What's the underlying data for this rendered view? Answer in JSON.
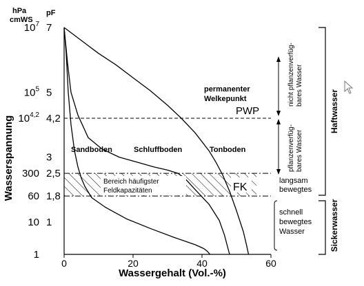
{
  "chart_data": {
    "type": "line",
    "xlabel": "Wassergehalt (Vol.-%)",
    "ylabel": "Wasserspannung",
    "xlim": [
      0,
      60
    ],
    "ylim": [
      0,
      7
    ],
    "y_unit_hpa": [
      "hPa",
      "cmWS"
    ],
    "y_unit_pf": "pF",
    "x_ticks": [
      0,
      20,
      40,
      60
    ],
    "pf_ticks": [
      {
        "pf": 7,
        "label": "7"
      },
      {
        "pf": 5,
        "label": "5"
      },
      {
        "pf": 4.2,
        "label": "4,2"
      },
      {
        "pf": 3,
        "label": "3"
      },
      {
        "pf": 2.5,
        "label": "2,5"
      },
      {
        "pf": 1.8,
        "label": "1,8"
      },
      {
        "pf": 1,
        "label": "1"
      }
    ],
    "hpa_ticks": [
      {
        "pf": 7,
        "base": "10",
        "exp": "7"
      },
      {
        "pf": 5,
        "base": "10",
        "exp": "5"
      },
      {
        "pf": 4.2,
        "base": "10",
        "exp": "4,2"
      },
      {
        "pf": 2.5,
        "base": "300",
        "exp": ""
      },
      {
        "pf": 1.8,
        "base": "60",
        "exp": ""
      },
      {
        "pf": 1,
        "base": "10",
        "exp": ""
      },
      {
        "pf": 0,
        "base": "1",
        "exp": ""
      }
    ],
    "series": [
      {
        "name": "Sandboden",
        "x": [
          0,
          0.6,
          1.2,
          2,
          3,
          4,
          5,
          6,
          8,
          12,
          18,
          25,
          32,
          38,
          40.5,
          41.5,
          42,
          42.3
        ],
        "y": [
          7,
          6.2,
          5,
          4,
          3.2,
          2.7,
          2.35,
          2.1,
          1.75,
          1.45,
          1.1,
          0.8,
          0.52,
          0.3,
          0.18,
          0.1,
          0.04,
          0
        ]
      },
      {
        "name": "Schluffboden",
        "x": [
          0,
          1,
          2,
          4,
          7,
          11,
          16,
          21,
          26,
          30,
          33,
          35,
          38,
          42,
          45,
          46.5,
          47.5,
          48
        ],
        "y": [
          7,
          5.9,
          5,
          4.3,
          3.6,
          3.25,
          3,
          2.85,
          2.7,
          2.6,
          2.5,
          2.35,
          2.0,
          1.55,
          1.05,
          0.6,
          0.2,
          0
        ]
      },
      {
        "name": "Tonboden",
        "x": [
          0,
          5,
          10,
          15,
          20,
          25,
          30,
          34,
          38,
          42,
          44,
          46,
          48,
          50,
          52,
          53,
          53.5
        ],
        "y": [
          7,
          6.6,
          6.2,
          5.85,
          5.45,
          5.05,
          4.6,
          4.2,
          3.75,
          3.2,
          2.85,
          2.45,
          1.95,
          1.35,
          0.7,
          0.25,
          0
        ]
      }
    ],
    "reference_lines": [
      {
        "name": "PWP",
        "pf": 4.2,
        "style": "dashed",
        "label": "PWP",
        "note_lines": [
          "permanenter",
          "Welkepunkt"
        ]
      },
      {
        "name": "FK-upper",
        "pf": 2.5,
        "style": "dashdot"
      },
      {
        "name": "FK-lower",
        "pf": 1.8,
        "style": "dashdot"
      }
    ],
    "fk_band": {
      "pf_from": 1.8,
      "pf_to": 2.5,
      "label": "FK",
      "note_lines": [
        "Bereich häufigster",
        "Feldkapazitäten"
      ]
    },
    "right_annotations": {
      "upper_lines": [
        "nicht pflanzenverfüg-",
        "bares Wasser"
      ],
      "middle_lines": [
        "pflanzenverfüg-",
        "bares Wasser"
      ],
      "langsam_lines": [
        "langsam",
        "bewegtes"
      ],
      "schnell_lines": [
        "schnell",
        "bewegtes",
        "Wasser"
      ],
      "haftwasser": "Haftwasser",
      "sickerwasser": "Sickerwasser"
    }
  },
  "colors": {
    "ink": "#000000",
    "background": "#ffffff",
    "cursor": "#7a7a7a"
  },
  "icons": {
    "cursor": "mouse-pointer-icon"
  }
}
